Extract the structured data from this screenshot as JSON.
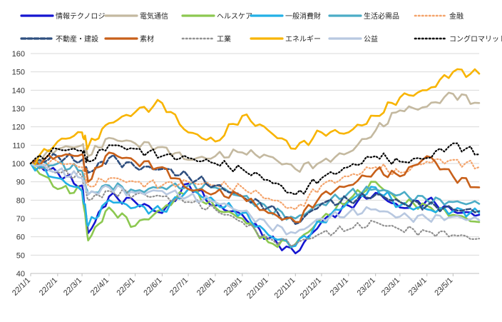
{
  "chart_data": {
    "type": "line",
    "title": "",
    "xlabel": "",
    "ylabel": "",
    "ylim": [
      40,
      160
    ],
    "yticks": [
      40,
      50,
      60,
      70,
      80,
      90,
      100,
      110,
      120,
      130,
      140,
      150,
      160
    ],
    "x_tick_labels": [
      "22/1/1",
      "22/2/1",
      "22/3/1",
      "22/4/1",
      "22/5/1",
      "22/6/1",
      "22/7/1",
      "22/8/1",
      "22/9/1",
      "22/10/1",
      "22/11/1",
      "22/12/1",
      "23/1/1",
      "23/2/1",
      "23/3/1",
      "23/4/1",
      "23/5/1"
    ],
    "x": [
      "22/1/1",
      "22/2/1",
      "22/3/1",
      "22/3/8",
      "22/4/1",
      "22/5/1",
      "22/6/1",
      "22/7/1",
      "22/8/1",
      "22/9/1",
      "22/10/1",
      "22/11/1",
      "22/12/1",
      "23/1/1",
      "23/2/1",
      "23/3/1",
      "23/4/1",
      "23/5/1",
      "23/5/31"
    ],
    "grid": "horizontal",
    "legend_position": "top",
    "series": [
      {
        "name": "情報テクノロジー",
        "color": "#1515d0",
        "style": "solid",
        "values": [
          100,
          95,
          88,
          62,
          82,
          79,
          73,
          89,
          77,
          72,
          59,
          51,
          68,
          77,
          84,
          76,
          80,
          74,
          72
        ]
      },
      {
        "name": "電気通信",
        "color": "#c4b9a0",
        "style": "solid",
        "values": [
          100,
          108,
          110,
          104,
          114,
          111,
          109,
          102,
          104,
          106,
          104,
          97,
          101,
          106,
          118,
          129,
          131,
          138,
          133
        ]
      },
      {
        "name": "ヘルスケア",
        "color": "#8cc850",
        "style": "solid",
        "values": [
          100,
          86,
          85,
          58,
          76,
          66,
          75,
          86,
          76,
          70,
          57,
          56,
          70,
          80,
          90,
          79,
          77,
          72,
          68
        ]
      },
      {
        "name": "一般消費財",
        "color": "#22b0e6",
        "style": "solid",
        "values": [
          100,
          92,
          85,
          66,
          80,
          76,
          74,
          86,
          79,
          73,
          61,
          55,
          68,
          79,
          87,
          77,
          75,
          74,
          73
        ]
      },
      {
        "name": "生活必需品",
        "color": "#4bacc6",
        "style": "solid",
        "values": [
          100,
          100,
          96,
          83,
          88,
          85,
          87,
          88,
          87,
          82,
          75,
          70,
          78,
          84,
          86,
          83,
          80,
          79,
          78
        ]
      },
      {
        "name": "金融",
        "color": "#f4a46c",
        "style": "dotted",
        "values": [
          100,
          101,
          98,
          88,
          92,
          90,
          88,
          90,
          88,
          87,
          81,
          75,
          88,
          93,
          98,
          95,
          101,
          102,
          98
        ]
      },
      {
        "name": "不動産・建設",
        "color": "#2f4f7f",
        "style": "dashed",
        "values": [
          100,
          104,
          102,
          95,
          103,
          98,
          97,
          93,
          88,
          82,
          76,
          67,
          78,
          80,
          83,
          79,
          77,
          75,
          74
        ]
      },
      {
        "name": "素材",
        "color": "#c8601a",
        "style": "solid",
        "values": [
          100,
          104,
          105,
          90,
          106,
          101,
          98,
          86,
          84,
          82,
          73,
          68,
          83,
          88,
          96,
          93,
          104,
          93,
          87
        ]
      },
      {
        "name": "工業",
        "color": "#909090",
        "style": "dotted",
        "values": [
          100,
          95,
          93,
          80,
          85,
          83,
          82,
          79,
          75,
          68,
          59,
          56,
          62,
          64,
          68,
          64,
          63,
          61,
          59
        ]
      },
      {
        "name": "エネルギー",
        "color": "#f8b400",
        "style": "solid",
        "values": [
          100,
          112,
          117,
          109,
          122,
          128,
          133,
          117,
          112,
          126,
          118,
          108,
          117,
          117,
          126,
          136,
          140,
          150,
          149
        ]
      },
      {
        "name": "公益",
        "color": "#b8c8e0",
        "style": "solid",
        "values": [
          100,
          96,
          92,
          83,
          87,
          84,
          85,
          82,
          79,
          74,
          66,
          62,
          70,
          73,
          75,
          71,
          70,
          71,
          69
        ]
      },
      {
        "name": "コングロマリット",
        "color": "#000000",
        "style": "dotted",
        "values": [
          100,
          108,
          107,
          101,
          110,
          108,
          104,
          103,
          100,
          97,
          91,
          83,
          92,
          98,
          104,
          101,
          103,
          111,
          105
        ]
      }
    ]
  }
}
